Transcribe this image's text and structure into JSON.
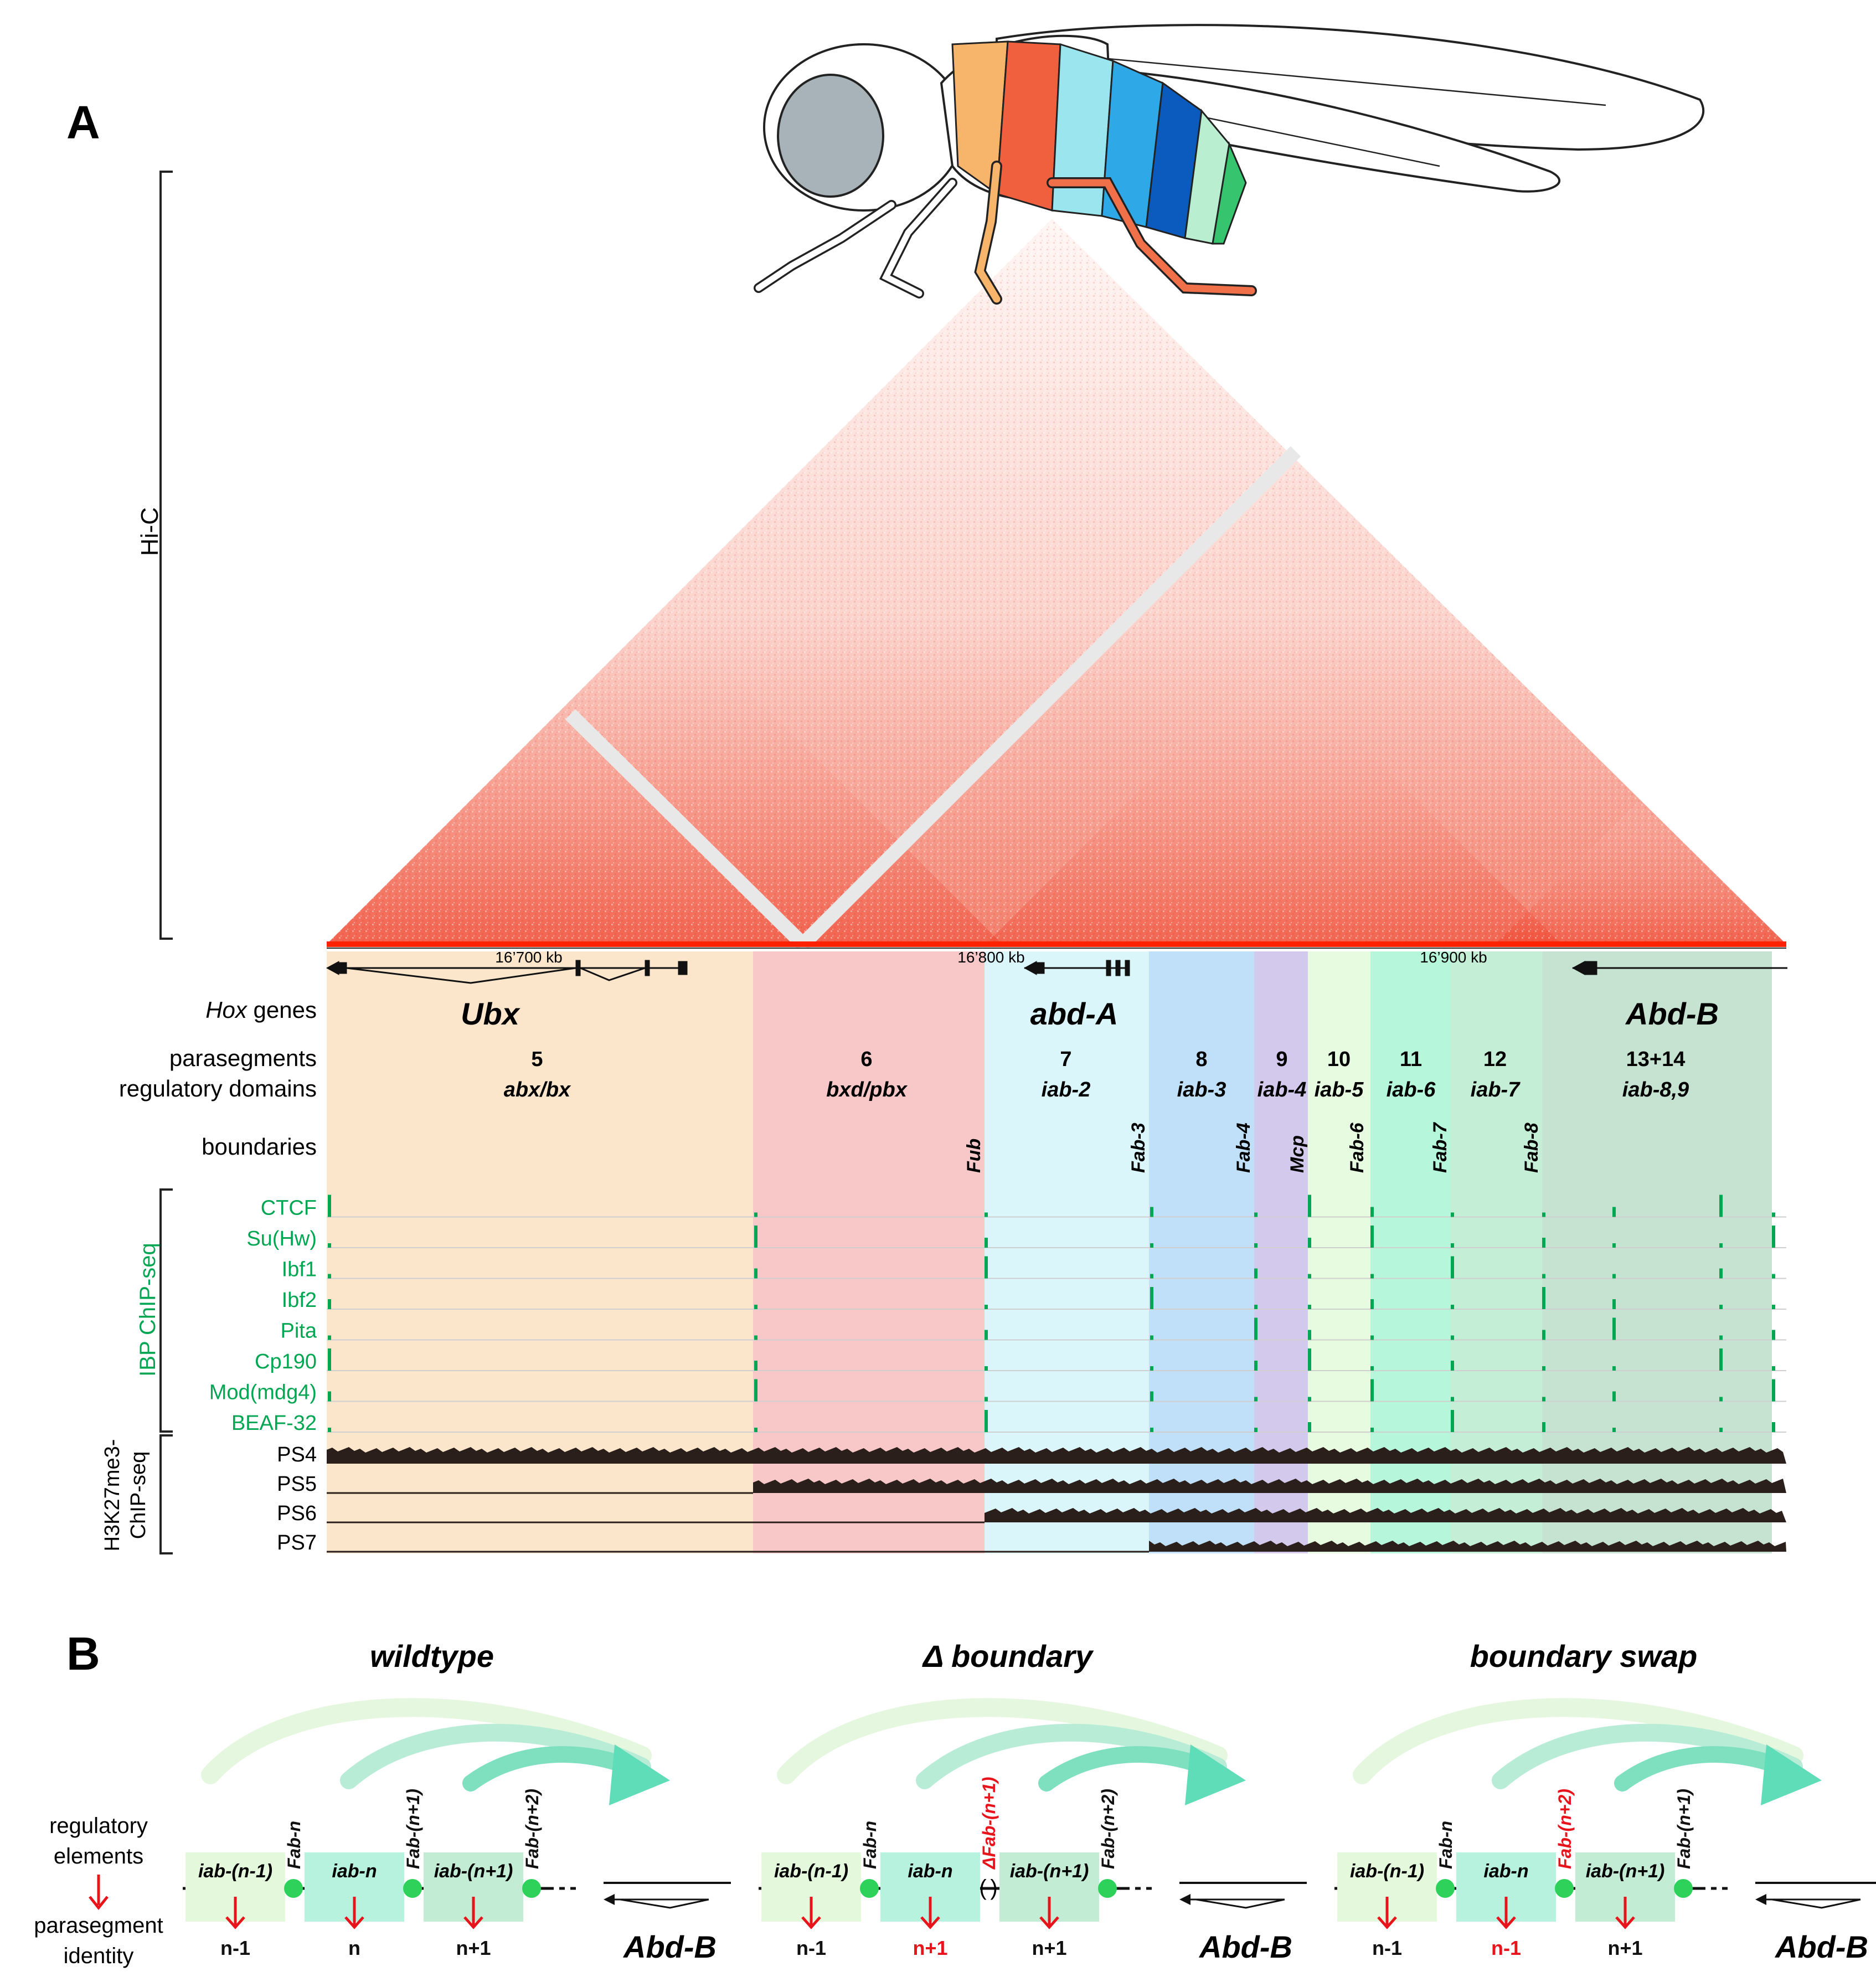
{
  "panel_a": {
    "label": "A",
    "hic_label": "Hi-C",
    "genome_ticks": [
      "16’700 kb",
      "16’800 kb",
      "16’900 kb"
    ],
    "row_labels": {
      "hox_prefix": "Hox",
      "hox_suffix": " genes",
      "parasegments": "parasegments",
      "regulatory_domains": "regulatory domains",
      "boundaries": "boundaries"
    },
    "hox_genes": [
      "Ubx",
      "abd-A",
      "Abd-B"
    ],
    "domains": [
      {
        "ps": "5",
        "domain": "abx/bx",
        "color": "#fbe6cc"
      },
      {
        "ps": "6",
        "domain": "bxd/pbx",
        "color": "#f8c8c8"
      },
      {
        "ps": "7",
        "domain": "iab-2",
        "color": "#daf6fb"
      },
      {
        "ps": "8",
        "domain": "iab-3",
        "color": "#bfe0f8"
      },
      {
        "ps": "9",
        "domain": "iab-4",
        "color": "#d3c9ec"
      },
      {
        "ps": "10",
        "domain": "iab-5",
        "color": "#e6fbe0"
      },
      {
        "ps": "11",
        "domain": "iab-6",
        "color": "#b6f6da"
      },
      {
        "ps": "12",
        "domain": "iab-7",
        "color": "#c4efd6"
      },
      {
        "ps": "13+14",
        "domain": "iab-8,9",
        "color": "#c6e3d1"
      }
    ],
    "boundaries": [
      "Fub",
      "Fab-3",
      "Fab-4",
      "Mcp",
      "Fab-6",
      "Fab-7",
      "Fab-8"
    ],
    "ibp_group_label": "IBP ChIP-seq",
    "ibp_tracks": [
      "CTCF",
      "Su(Hw)",
      "Ibf1",
      "Ibf2",
      "Pita",
      "Cp190",
      "Mod(mdg4)",
      "BEAF-32"
    ],
    "h3k_group_label_1": "H3K27me3-",
    "h3k_group_label_2": "ChIP-seq",
    "h3k_tracks": [
      "PS4",
      "PS5",
      "PS6",
      "PS7"
    ],
    "colors": {
      "ibp": "#00a651",
      "hic": "#ff2a1a",
      "signal": "#2a1f1a"
    }
  },
  "panel_b": {
    "label": "B",
    "left_labels": {
      "top1": "regulatory",
      "top2": "elements",
      "bottom1": "parasegment",
      "bottom2": "identity"
    },
    "scenarios": [
      {
        "title": "wildtype",
        "elements": [
          "iab-(n-1)",
          "iab-n",
          "iab-(n+1)"
        ],
        "boundaries": [
          "Fab-n",
          "Fab-(n+1)",
          "Fab-(n+2)"
        ],
        "identities": [
          "n-1",
          "n",
          "n+1"
        ],
        "gene": "Abd-B"
      },
      {
        "title": "Δ boundary",
        "elements": [
          "iab-(n-1)",
          "iab-n",
          "iab-(n+1)"
        ],
        "boundaries": [
          "Fab-n",
          "ΔFab-(n+1)",
          "Fab-(n+2)"
        ],
        "identities": [
          "n-1",
          "n+1",
          "n+1"
        ],
        "gene": "Abd-B"
      },
      {
        "title": "boundary swap",
        "elements": [
          "iab-(n-1)",
          "iab-n",
          "iab-(n+1)"
        ],
        "boundaries": [
          "Fab-n",
          "Fab-(n+2)",
          "Fab-(n+1)"
        ],
        "identities": [
          "n-1",
          "n-1",
          "n+1"
        ],
        "gene": "Abd-B"
      }
    ]
  }
}
